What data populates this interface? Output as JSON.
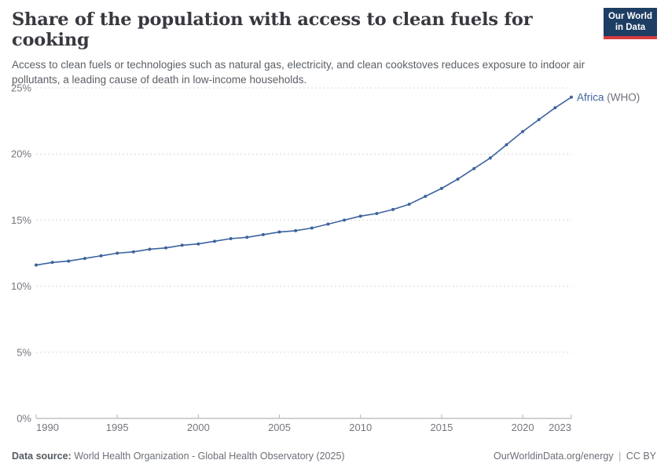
{
  "header": {
    "title": "Share of the population with access to clean fuels for cooking",
    "subtitle": "Access to clean fuels or technologies such as natural gas, electricity, and clean cookstoves reduces exposure to indoor air pollutants, a leading cause of death in low-income households.",
    "logo_line1": "Our World",
    "logo_line2": "in Data"
  },
  "chart_data": {
    "type": "line",
    "title": "Share of the population with access to clean fuels for cooking",
    "x": [
      1990,
      1991,
      1992,
      1993,
      1994,
      1995,
      1996,
      1997,
      1998,
      1999,
      2000,
      2001,
      2002,
      2003,
      2004,
      2005,
      2006,
      2007,
      2008,
      2009,
      2010,
      2011,
      2012,
      2013,
      2014,
      2015,
      2016,
      2017,
      2018,
      2019,
      2020,
      2021,
      2022,
      2023
    ],
    "series": [
      {
        "name": "Africa (WHO)",
        "entity": "Africa",
        "qualifier": " (WHO)",
        "color": "#3d639d",
        "values": [
          11.6,
          11.8,
          11.9,
          12.1,
          12.3,
          12.5,
          12.6,
          12.8,
          12.9,
          13.1,
          13.2,
          13.4,
          13.6,
          13.7,
          13.9,
          14.1,
          14.2,
          14.4,
          14.7,
          15.0,
          15.3,
          15.5,
          15.8,
          16.2,
          16.8,
          17.4,
          18.1,
          18.9,
          19.7,
          20.7,
          21.7,
          22.6,
          23.5,
          24.3
        ]
      }
    ],
    "ylim": [
      0,
      25
    ],
    "yticks": [
      0,
      5,
      10,
      15,
      20,
      25
    ],
    "ytick_suffix": "%",
    "xticks": [
      1990,
      1995,
      2000,
      2005,
      2010,
      2015,
      2020,
      2023
    ],
    "xlabel": "",
    "ylabel": "",
    "grid": "horizontal-dashed",
    "legend_position": "end-of-line"
  },
  "footer": {
    "source_label": "Data source:",
    "source_value": " World Health Organization - Global Health Observatory (2025)",
    "site": "OurWorldinData.org/energy",
    "separator": "|",
    "license": "CC BY"
  },
  "colors": {
    "line": "#3d639d",
    "qualifier_text": "#6e7079",
    "axis_text": "#76767f",
    "gridline": "#d9d9d9",
    "axis_line": "#a3a3aa",
    "tick_mark": "#b4b4bb",
    "logo_bg": "#1d3d63",
    "logo_red": "#d73c3c"
  }
}
